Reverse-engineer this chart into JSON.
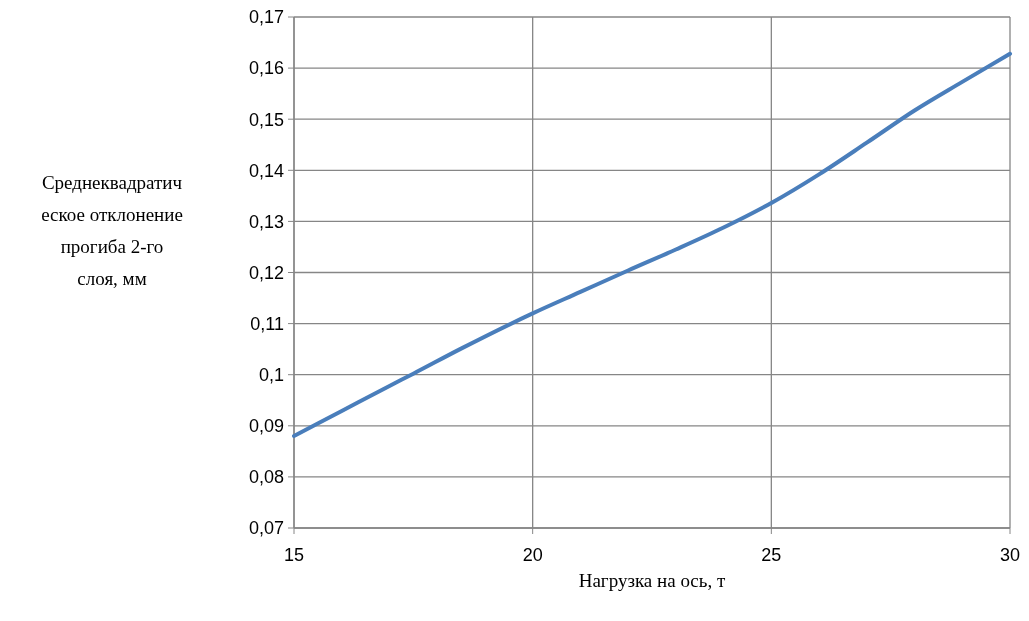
{
  "chart_data": {
    "type": "line",
    "xlabel": "Нагрузка на ось, т",
    "ylabel": "Среднеквадратическое отклонение прогиба 2-го слоя, мм",
    "x": [
      15,
      16,
      17,
      17.5,
      18.5,
      20,
      21,
      22,
      23,
      24,
      25,
      26,
      27,
      28,
      29,
      30
    ],
    "series": [
      {
        "color": "#4a7ebb",
        "values": [
          0.088,
          0.0929,
          0.0978,
          0.1002,
          0.1051,
          0.112,
          0.1162,
          0.1204,
          0.1245,
          0.1288,
          0.1336,
          0.1392,
          0.1454,
          0.1517,
          0.1573,
          0.1628
        ]
      }
    ],
    "xlim": [
      15,
      30
    ],
    "xticks": [
      15,
      20,
      25,
      30
    ],
    "ylim": [
      0.07,
      0.17
    ],
    "yticks": [
      {
        "value": 0.07,
        "label": "0,07"
      },
      {
        "value": 0.08,
        "label": "0,08"
      },
      {
        "value": 0.09,
        "label": "0,09"
      },
      {
        "value": 0.1,
        "label": "0,1"
      },
      {
        "value": 0.11,
        "label": "0,11"
      },
      {
        "value": 0.12,
        "label": "0,12"
      },
      {
        "value": 0.13,
        "label": "0,13"
      },
      {
        "value": 0.14,
        "label": "0,14"
      },
      {
        "value": 0.15,
        "label": "0,15"
      },
      {
        "value": 0.16,
        "label": "0,16"
      },
      {
        "value": 0.17,
        "label": "0,17"
      }
    ],
    "grid": true,
    "marker": "none",
    "line_style": "solid"
  }
}
